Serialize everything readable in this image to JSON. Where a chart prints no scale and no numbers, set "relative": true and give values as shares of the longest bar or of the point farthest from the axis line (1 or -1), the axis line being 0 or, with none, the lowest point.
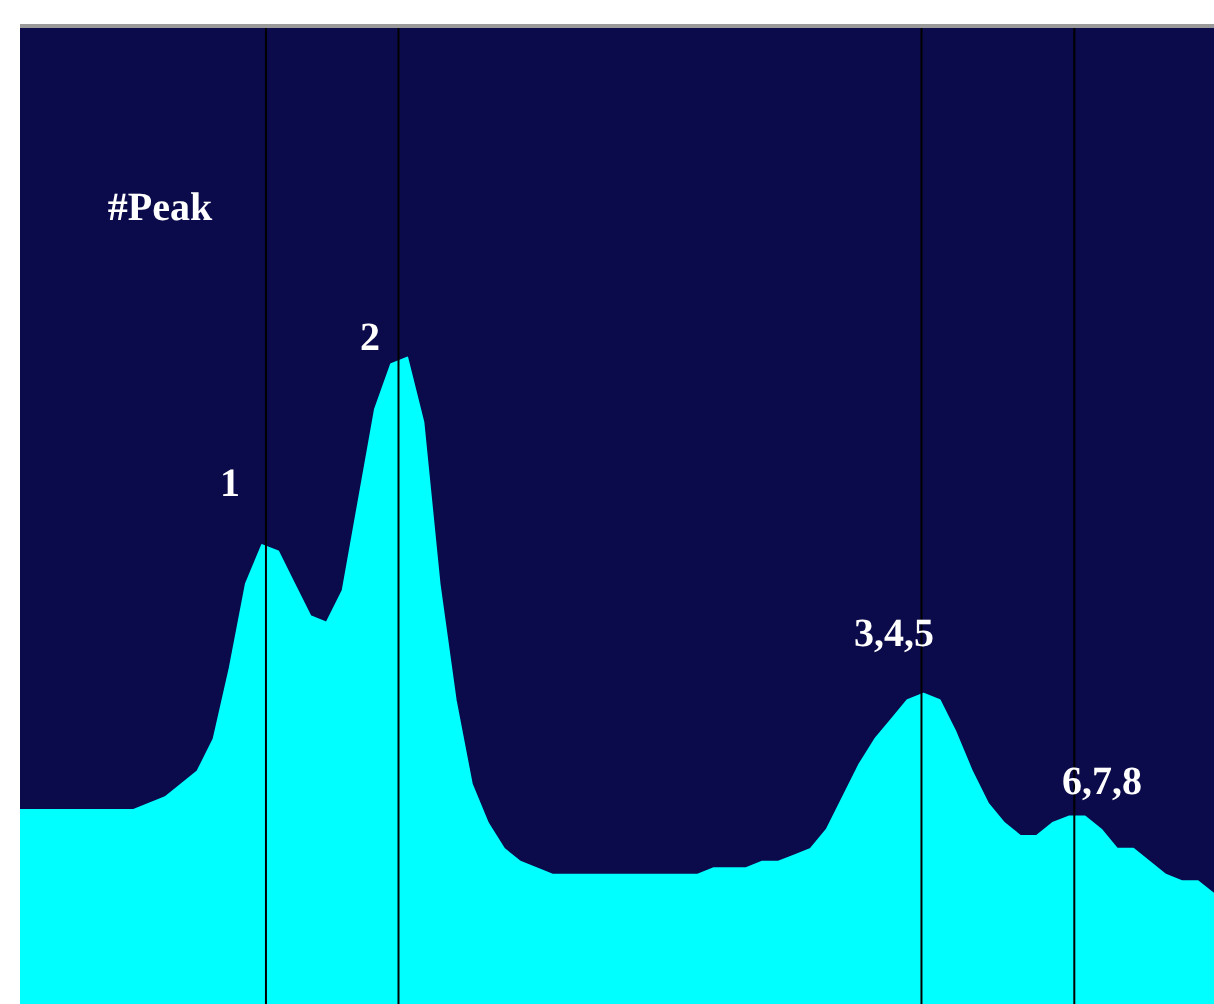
{
  "chart_data": {
    "type": "area",
    "relative": true,
    "legend": false,
    "categories": [
      null,
      null,
      null,
      null,
      null,
      null,
      null,
      null,
      null,
      null,
      null,
      null,
      null,
      null,
      null,
      null,
      null,
      null,
      null,
      null,
      null,
      null,
      null,
      null,
      null,
      null,
      null,
      null,
      null,
      null,
      null,
      null,
      null,
      null,
      null,
      null,
      null,
      null,
      null,
      null,
      null,
      null,
      null,
      null,
      null,
      null,
      null,
      null,
      null,
      null,
      null,
      null,
      null,
      null,
      null,
      null,
      null,
      null,
      null,
      null,
      null,
      null,
      null,
      null,
      null,
      null,
      null,
      null,
      null,
      null,
      null,
      null,
      null,
      null,
      null
    ],
    "series": [
      {
        "color": "#00ffff",
        "values": [
          0.3,
          0.3,
          0.3,
          0.3,
          0.3,
          0.3,
          0.3,
          0.3,
          0.31,
          0.32,
          0.34,
          0.36,
          0.41,
          0.52,
          0.65,
          0.71,
          0.7,
          0.65,
          0.6,
          0.59,
          0.64,
          0.78,
          0.92,
          0.99,
          1.0,
          0.9,
          0.65,
          0.47,
          0.34,
          0.28,
          0.24,
          0.22,
          0.21,
          0.2,
          0.2,
          0.2,
          0.2,
          0.2,
          0.2,
          0.2,
          0.2,
          0.2,
          0.2,
          0.21,
          0.21,
          0.21,
          0.22,
          0.22,
          0.23,
          0.24,
          0.27,
          0.32,
          0.37,
          0.41,
          0.44,
          0.47,
          0.48,
          0.47,
          0.42,
          0.36,
          0.31,
          0.28,
          0.26,
          0.26,
          0.28,
          0.29,
          0.29,
          0.27,
          0.24,
          0.24,
          0.22,
          0.2,
          0.19,
          0.19,
          0.17
        ]
      }
    ],
    "annotations": [
      "#Peak",
      "1",
      "2",
      "3,4,5",
      "6,7,8"
    ]
  }
}
